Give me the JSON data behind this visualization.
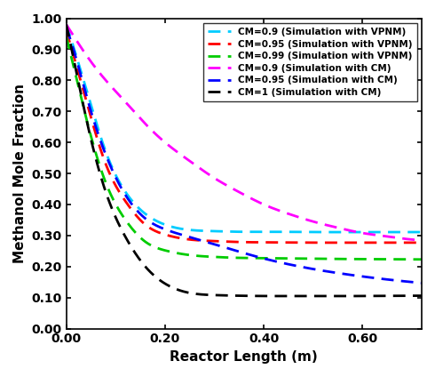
{
  "title": "",
  "xlabel": "Reactor Length (m)",
  "ylabel": "Methanol Mole Fraction",
  "xlim": [
    0.0,
    0.72
  ],
  "ylim": [
    0.0,
    1.0
  ],
  "xticks": [
    0.0,
    0.2,
    0.4,
    0.6
  ],
  "yticks": [
    0.0,
    0.1,
    0.2,
    0.3,
    0.4,
    0.5,
    0.6,
    0.7,
    0.8,
    0.9,
    1.0
  ],
  "curves": [
    {
      "label": "CM=0.9 (Simulation with VPNM)",
      "color": "#00CCFF",
      "x": [
        0.0,
        0.02,
        0.05,
        0.08,
        0.12,
        0.16,
        0.2,
        0.25,
        0.3,
        0.35,
        0.4,
        0.5,
        0.6,
        0.7,
        0.72
      ],
      "y": [
        0.98,
        0.88,
        0.72,
        0.57,
        0.44,
        0.37,
        0.335,
        0.318,
        0.314,
        0.312,
        0.312,
        0.311,
        0.311,
        0.311,
        0.311
      ]
    },
    {
      "label": "CM=0.95 (Simulation with VPNM)",
      "color": "#FF0000",
      "x": [
        0.0,
        0.02,
        0.05,
        0.08,
        0.12,
        0.16,
        0.2,
        0.25,
        0.3,
        0.35,
        0.4,
        0.5,
        0.6,
        0.7,
        0.72
      ],
      "y": [
        0.96,
        0.85,
        0.68,
        0.53,
        0.41,
        0.335,
        0.303,
        0.287,
        0.282,
        0.279,
        0.278,
        0.277,
        0.277,
        0.277,
        0.277
      ]
    },
    {
      "label": "CM=0.99 (Simulation with VPNM)",
      "color": "#00CC00",
      "x": [
        0.0,
        0.02,
        0.05,
        0.08,
        0.12,
        0.16,
        0.2,
        0.25,
        0.3,
        0.35,
        0.4,
        0.5,
        0.6,
        0.7,
        0.72
      ],
      "y": [
        0.94,
        0.81,
        0.62,
        0.47,
        0.35,
        0.28,
        0.252,
        0.237,
        0.231,
        0.228,
        0.227,
        0.225,
        0.224,
        0.223,
        0.223
      ]
    },
    {
      "label": "CM=0.9 (Simulation with CM)",
      "color": "#FF00FF",
      "x": [
        0.0,
        0.02,
        0.05,
        0.08,
        0.12,
        0.16,
        0.2,
        0.25,
        0.3,
        0.35,
        0.4,
        0.45,
        0.5,
        0.55,
        0.6,
        0.65,
        0.7,
        0.72
      ],
      "y": [
        0.98,
        0.93,
        0.86,
        0.8,
        0.73,
        0.66,
        0.6,
        0.54,
        0.485,
        0.44,
        0.4,
        0.37,
        0.345,
        0.325,
        0.308,
        0.297,
        0.287,
        0.285
      ]
    },
    {
      "label": "CM=0.95 (Simulation with CM)",
      "color": "#0000FF",
      "x": [
        0.0,
        0.02,
        0.05,
        0.08,
        0.12,
        0.16,
        0.2,
        0.25,
        0.3,
        0.35,
        0.4,
        0.5,
        0.6,
        0.7,
        0.72
      ],
      "y": [
        0.97,
        0.87,
        0.7,
        0.56,
        0.43,
        0.355,
        0.32,
        0.295,
        0.272,
        0.248,
        0.226,
        0.192,
        0.168,
        0.15,
        0.147
      ]
    },
    {
      "label": "CM=1 (Simulation with CM)",
      "color": "#000000",
      "x": [
        0.0,
        0.02,
        0.05,
        0.08,
        0.12,
        0.16,
        0.2,
        0.25,
        0.3,
        0.4,
        0.5,
        0.6,
        0.7,
        0.72
      ],
      "y": [
        0.98,
        0.83,
        0.61,
        0.44,
        0.295,
        0.2,
        0.145,
        0.115,
        0.108,
        0.105,
        0.105,
        0.105,
        0.106,
        0.106
      ]
    }
  ],
  "legend_fontsize": 7.5,
  "axis_fontsize": 11,
  "tick_fontsize": 10
}
